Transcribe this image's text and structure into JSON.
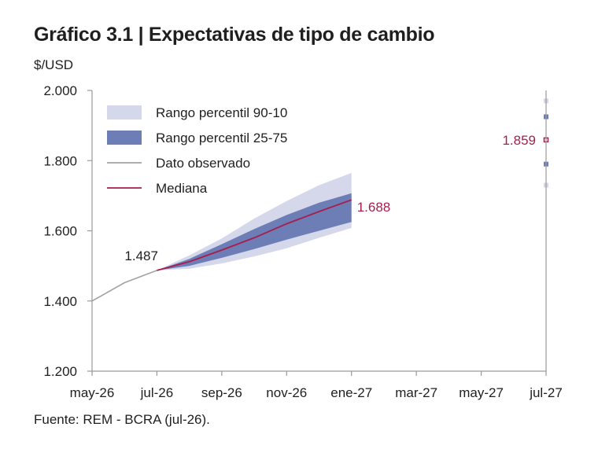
{
  "header": {
    "title": "Gráfico 3.1 | Expectativas de tipo de cambio",
    "unit": "$/USD",
    "source": "Fuente: REM - BCRA (jul-26)."
  },
  "chart_data": {
    "type": "area",
    "title": "Gráfico 3.1 | Expectativas de tipo de cambio",
    "ylabel": "$/USD",
    "ylim": [
      1200,
      2000
    ],
    "yticks": [
      1200,
      1400,
      1600,
      1800,
      2000
    ],
    "ytick_labels": [
      "1.200",
      "1.400",
      "1.600",
      "1.800",
      "2.000"
    ],
    "xticks": [
      "may-26",
      "jul-26",
      "sep-26",
      "nov-26",
      "ene-27",
      "mar-27",
      "may-27",
      "jul-27"
    ],
    "xlim_months": [
      0,
      14
    ],
    "legend_position": "top-left",
    "legend": [
      {
        "key": "p90_10",
        "label": "Rango percentil 90-10",
        "color": "#d5d8eb"
      },
      {
        "key": "p25_75",
        "label": "Rango percentil 25-75",
        "color": "#6d7db5"
      },
      {
        "key": "observed",
        "label": "Dato observado",
        "color": "#a3a3a3"
      },
      {
        "key": "median",
        "label": "Mediana",
        "color": "#a61e4d"
      }
    ],
    "observed": {
      "x": [
        "may-26",
        "jun-26",
        "jul-26"
      ],
      "y": [
        1400,
        1452,
        1487
      ]
    },
    "forecast": {
      "x": [
        "jul-26",
        "ago-26",
        "sep-26",
        "oct-26",
        "nov-26",
        "dic-26",
        "ene-27"
      ],
      "median": [
        1487,
        1512,
        1545,
        1580,
        1620,
        1655,
        1688
      ],
      "p25": [
        1487,
        1500,
        1523,
        1548,
        1575,
        1600,
        1625
      ],
      "p75": [
        1487,
        1520,
        1562,
        1605,
        1645,
        1680,
        1707
      ],
      "p10": [
        1487,
        1492,
        1507,
        1527,
        1550,
        1580,
        1608
      ],
      "p90": [
        1487,
        1530,
        1578,
        1635,
        1685,
        1730,
        1765
      ]
    },
    "jul27": {
      "x": "jul-27",
      "p90": 1970,
      "p75": 1925,
      "median": 1859,
      "p25": 1790,
      "p10": 1730
    },
    "annotations": [
      {
        "text": "1.487",
        "x": "jul-26",
        "y": 1487,
        "color": "#1f1f1f"
      },
      {
        "text": "1.688",
        "x": "ene-27",
        "y": 1688,
        "color": "#a61e4d"
      },
      {
        "text": "1.859",
        "x": "jul-27",
        "y": 1859,
        "color": "#a61e4d"
      }
    ],
    "colors": {
      "axis": "#9a9a9a",
      "band_outer": "#d5d8eb",
      "band_inner": "#6d7db5",
      "observed": "#a3a3a3",
      "median": "#a61e4d",
      "text": "#1f1f1f"
    }
  }
}
